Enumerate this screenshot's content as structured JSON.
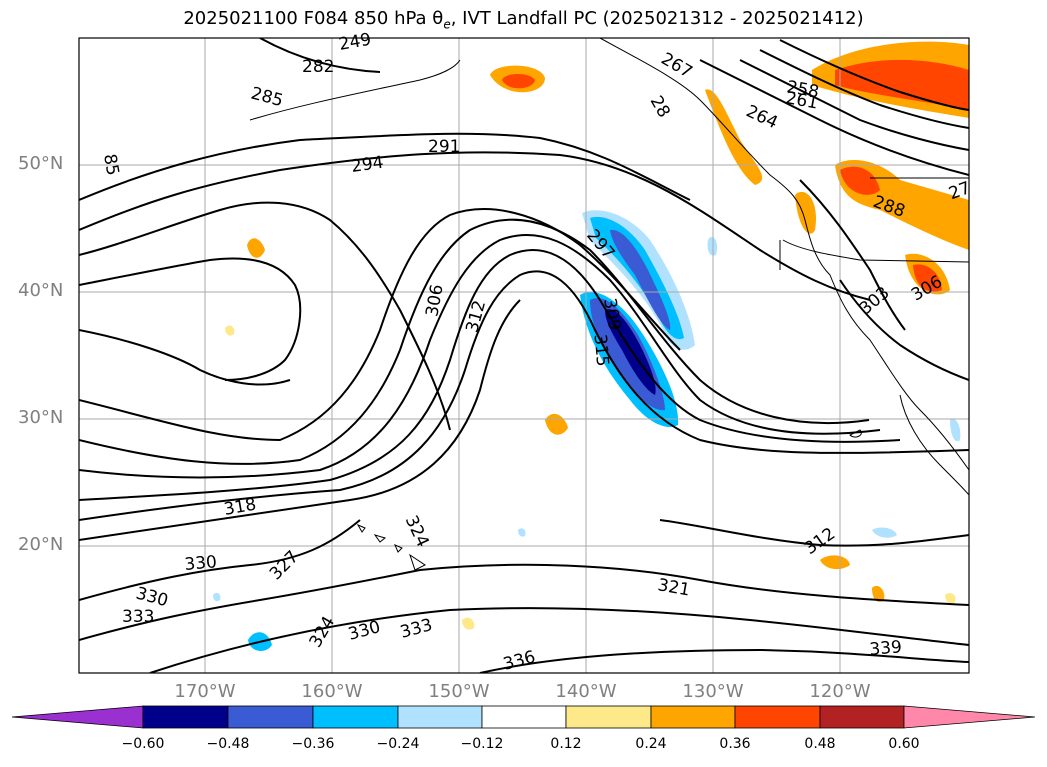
{
  "title_text": "2025021100 F084 850 hPa θ",
  "title_sub": "e",
  "title_rest": ", IVT Landfall PC (2025021312 - 2025021412)",
  "lat_labels": [
    "50°N",
    "40°N",
    "30°N",
    "20°N"
  ],
  "lon_labels": [
    "170°W",
    "160°W",
    "150°W",
    "140°W",
    "130°W",
    "120°W"
  ],
  "contour_labels": [
    "249",
    "282",
    "285",
    "85",
    "291",
    "294",
    "306",
    "312",
    "297",
    "309",
    "315",
    "318",
    "324",
    "327",
    "330",
    "330",
    "333",
    "324",
    "330",
    "333",
    "336",
    "321",
    "312",
    "339",
    "288",
    "303",
    "306",
    "264",
    "261",
    "258",
    "267",
    "28",
    "27"
  ],
  "colorbar": {
    "ticks": [
      "−0.60",
      "−0.48",
      "−0.36",
      "−0.24",
      "−0.12",
      "0.12",
      "0.24",
      "0.36",
      "0.48",
      "0.60"
    ],
    "colors": [
      "#9b30d0",
      "#00008b",
      "#3a5bd3",
      "#00bfff",
      "#b0e2ff",
      "#ffffff",
      "#fde98a",
      "#ffa500",
      "#ff4500",
      "#b22222",
      "#ff88aa"
    ]
  },
  "colors": {
    "axis": "#808080",
    "contour": "#000000",
    "grid": "#aaaaaa"
  }
}
